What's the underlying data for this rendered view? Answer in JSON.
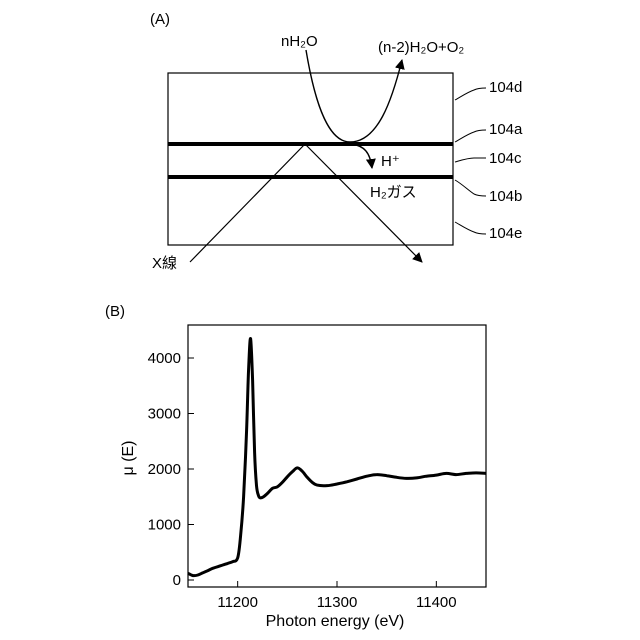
{
  "panel_a": {
    "label": "(A)",
    "reactant": "nH₂O",
    "product": "(n-2)H₂O+O₂",
    "proton": "H⁺",
    "gas": "H₂ガス",
    "xray": "X線",
    "layers": [
      "104d",
      "104a",
      "104c",
      "104b",
      "104e"
    ]
  },
  "panel_b": {
    "label": "(B)",
    "chart_data": {
      "type": "line",
      "xlabel": "Photon energy (eV)",
      "ylabel": "μ (E)",
      "xlim": [
        11150,
        11450
      ],
      "ylim": [
        0,
        4400
      ],
      "x_ticks": [
        11200,
        11300,
        11400
      ],
      "y_ticks": [
        0,
        1000,
        2000,
        3000,
        4000
      ],
      "series": [
        {
          "x": [
            11150,
            11155,
            11160,
            11165,
            11170,
            11175,
            11180,
            11185,
            11190,
            11195,
            11200,
            11203,
            11206,
            11209,
            11211,
            11213,
            11215,
            11217,
            11219,
            11221,
            11223,
            11226,
            11230,
            11235,
            11240,
            11245,
            11250,
            11255,
            11260,
            11265,
            11270,
            11275,
            11280,
            11290,
            11300,
            11310,
            11320,
            11330,
            11340,
            11350,
            11360,
            11370,
            11380,
            11390,
            11400,
            11410,
            11420,
            11430,
            11440,
            11450
          ],
          "y": [
            120,
            80,
            90,
            130,
            170,
            210,
            240,
            270,
            300,
            330,
            400,
            800,
            1500,
            2700,
            3800,
            4350,
            3600,
            2300,
            1700,
            1520,
            1480,
            1500,
            1560,
            1650,
            1680,
            1760,
            1860,
            1950,
            2020,
            1960,
            1850,
            1760,
            1710,
            1700,
            1730,
            1770,
            1820,
            1870,
            1900,
            1880,
            1850,
            1830,
            1840,
            1870,
            1890,
            1920,
            1900,
            1920,
            1930,
            1920
          ]
        }
      ]
    }
  }
}
